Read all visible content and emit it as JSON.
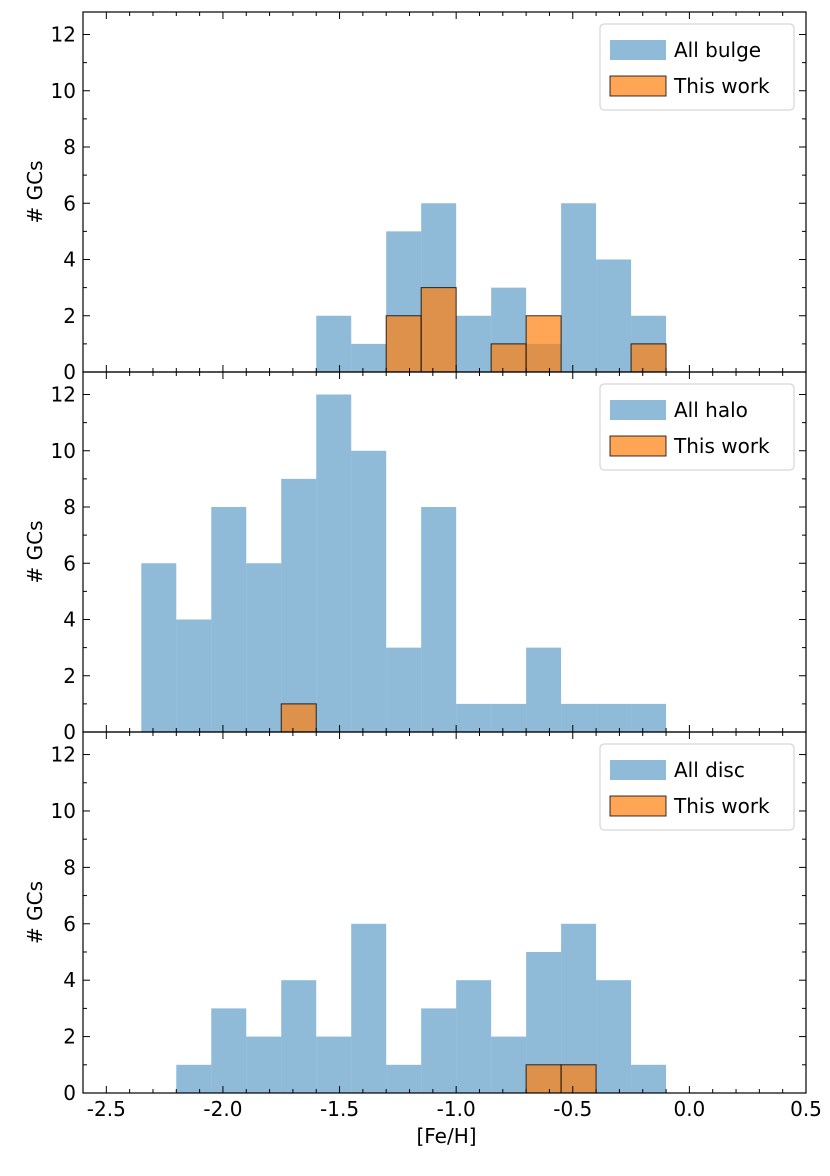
{
  "chart_data": [
    {
      "type": "bar",
      "panel": "bulge",
      "ylabel": "# GCs",
      "xlim": [
        -2.6,
        0.5
      ],
      "ylim": [
        0,
        12.8
      ],
      "yticks": [
        0,
        2,
        4,
        6,
        8,
        10,
        12
      ],
      "bin_edges": [
        -2.35,
        -2.2,
        -2.05,
        -1.9,
        -1.75,
        -1.6,
        -1.45,
        -1.3,
        -1.15,
        -1.0,
        -0.85,
        -0.7,
        -0.55,
        -0.4,
        -0.25,
        -0.1
      ],
      "series": [
        {
          "name": "All bulge",
          "color": "#1f77b4",
          "alpha": 0.5,
          "edge": false,
          "values": [
            0,
            0,
            0,
            0,
            0,
            2,
            1,
            5,
            6,
            2,
            3,
            1,
            6,
            4,
            2
          ]
        },
        {
          "name": "This work",
          "color": "#ff7f0e",
          "alpha": 0.7,
          "edge": true,
          "values": [
            0,
            0,
            0,
            0,
            0,
            0,
            0,
            2,
            3,
            0,
            1,
            2,
            0,
            0,
            1
          ]
        }
      ],
      "legend_location": "upper right"
    },
    {
      "type": "bar",
      "panel": "halo",
      "ylabel": "# GCs",
      "xlim": [
        -2.6,
        0.5
      ],
      "ylim": [
        0,
        12.8
      ],
      "yticks": [
        0,
        2,
        4,
        6,
        8,
        10,
        12
      ],
      "bin_edges": [
        -2.35,
        -2.2,
        -2.05,
        -1.9,
        -1.75,
        -1.6,
        -1.45,
        -1.3,
        -1.15,
        -1.0,
        -0.85,
        -0.7,
        -0.55,
        -0.4,
        -0.25,
        -0.1
      ],
      "series": [
        {
          "name": "All halo",
          "color": "#1f77b4",
          "alpha": 0.5,
          "edge": false,
          "values": [
            6,
            4,
            8,
            6,
            9,
            12,
            10,
            3,
            8,
            1,
            1,
            3,
            1,
            1,
            1
          ]
        },
        {
          "name": "This work",
          "color": "#ff7f0e",
          "alpha": 0.7,
          "edge": true,
          "values": [
            0,
            0,
            0,
            0,
            1,
            0,
            0,
            0,
            0,
            0,
            0,
            0,
            0,
            0,
            0
          ]
        }
      ],
      "legend_location": "upper right"
    },
    {
      "type": "bar",
      "panel": "disc",
      "ylabel": "# GCs",
      "xlabel": "[Fe/H]",
      "xlim": [
        -2.6,
        0.5
      ],
      "ylim": [
        0,
        12.8
      ],
      "yticks": [
        0,
        2,
        4,
        6,
        8,
        10,
        12
      ],
      "xticks": [
        -2.5,
        -2.0,
        -1.5,
        -1.0,
        -0.5,
        0.0,
        0.5
      ],
      "xtick_labels": [
        "-2.5",
        "-2.0",
        "-1.5",
        "-1.0",
        "-0.5",
        "0.0",
        "0.5"
      ],
      "bin_edges": [
        -2.35,
        -2.2,
        -2.05,
        -1.9,
        -1.75,
        -1.6,
        -1.45,
        -1.3,
        -1.15,
        -1.0,
        -0.85,
        -0.7,
        -0.55,
        -0.4,
        -0.25,
        -0.1
      ],
      "series": [
        {
          "name": "All disc",
          "color": "#1f77b4",
          "alpha": 0.5,
          "edge": false,
          "values": [
            0,
            1,
            3,
            2,
            4,
            2,
            6,
            1,
            3,
            4,
            2,
            5,
            6,
            4,
            1
          ]
        },
        {
          "name": "This work",
          "color": "#ff7f0e",
          "alpha": 0.7,
          "edge": true,
          "values": [
            0,
            0,
            0,
            0,
            0,
            0,
            0,
            0,
            0,
            0,
            0,
            1,
            1,
            0,
            0
          ]
        }
      ],
      "legend_location": "upper right"
    }
  ]
}
